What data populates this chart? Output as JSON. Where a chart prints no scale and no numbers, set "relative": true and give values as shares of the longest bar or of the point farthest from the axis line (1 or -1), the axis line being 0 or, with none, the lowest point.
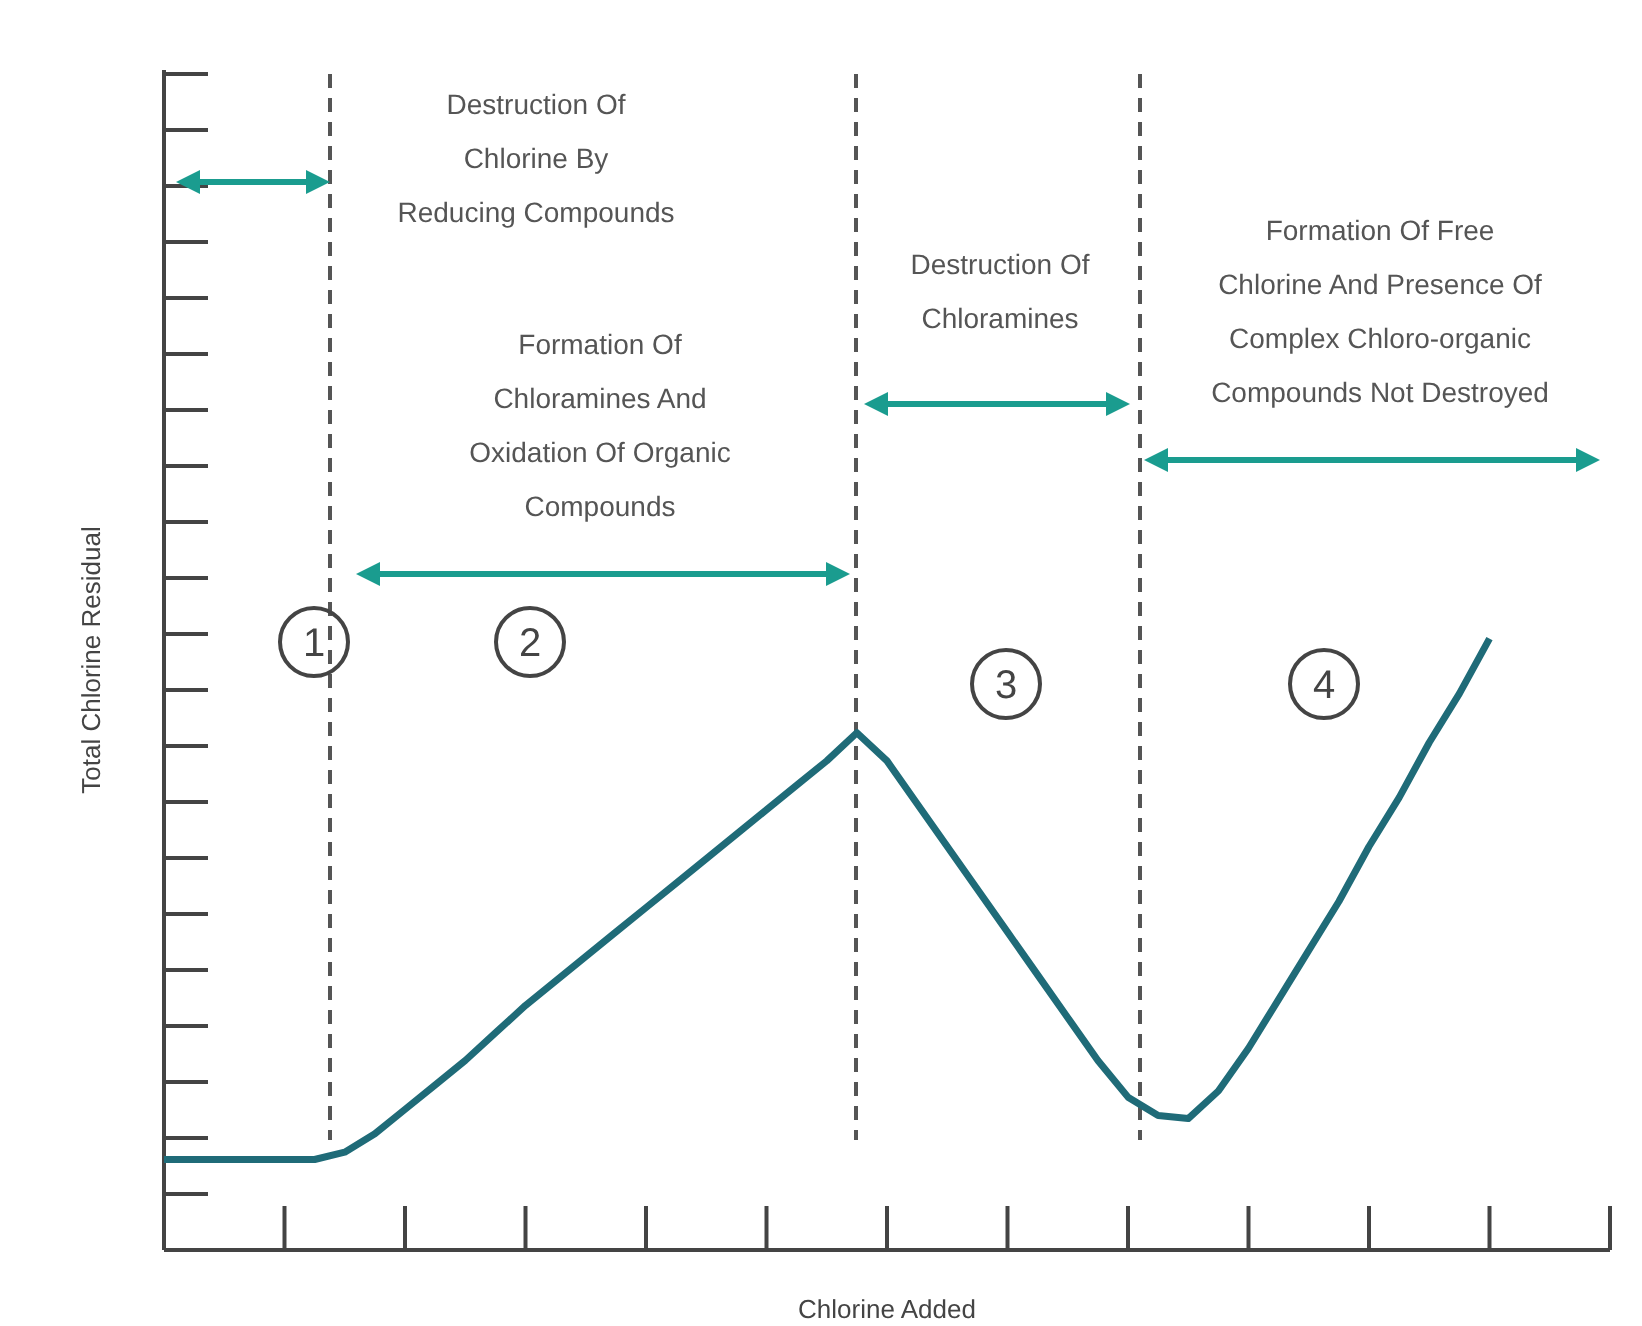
{
  "chart_data": {
    "type": "line",
    "relative": true,
    "xlabel": "Chlorine Added",
    "ylabel": "Total Chlorine Residual",
    "categories": [
      null,
      null,
      null,
      null,
      null,
      null,
      null,
      null,
      null,
      null,
      null,
      null,
      null,
      null,
      null,
      null,
      null,
      null,
      null,
      null,
      null,
      null,
      null,
      null,
      null,
      null,
      null,
      null,
      null,
      null,
      null,
      null,
      null,
      null,
      null,
      null,
      null,
      null,
      null,
      null,
      null,
      null,
      null,
      null,
      null,
      null,
      null,
      null,
      null
    ],
    "series": [
      {
        "color": "#1f6b78",
        "values": [
          0.148,
          0.148,
          0.148,
          0.148,
          0.148,
          0.148,
          0.16,
          0.19,
          0.23,
          0.27,
          0.31,
          0.355,
          0.4,
          0.44,
          0.48,
          0.52,
          0.56,
          0.6,
          0.64,
          0.68,
          0.72,
          0.76,
          0.8,
          0.846,
          0.8,
          0.73,
          0.66,
          0.59,
          0.52,
          0.45,
          0.38,
          0.31,
          0.25,
          0.22,
          0.215,
          0.26,
          0.33,
          0.41,
          0.49,
          0.57,
          0.66,
          0.74,
          0.83,
          0.91,
          1,
          null,
          null,
          null,
          null
        ]
      }
    ],
    "annotations": [
      "Destruction Of Chlorine By Reducing Compounds",
      "Formation Of Chloramines And Oxidation Of Organic Compounds",
      "Destruction Of Chloramines",
      "Formation Of Free Chlorine And Presence Of Complex Chloro-organic Compounds Not Destroyed",
      "1",
      "2",
      "3",
      "4"
    ],
    "marker": "none",
    "line_style": "solid"
  }
}
